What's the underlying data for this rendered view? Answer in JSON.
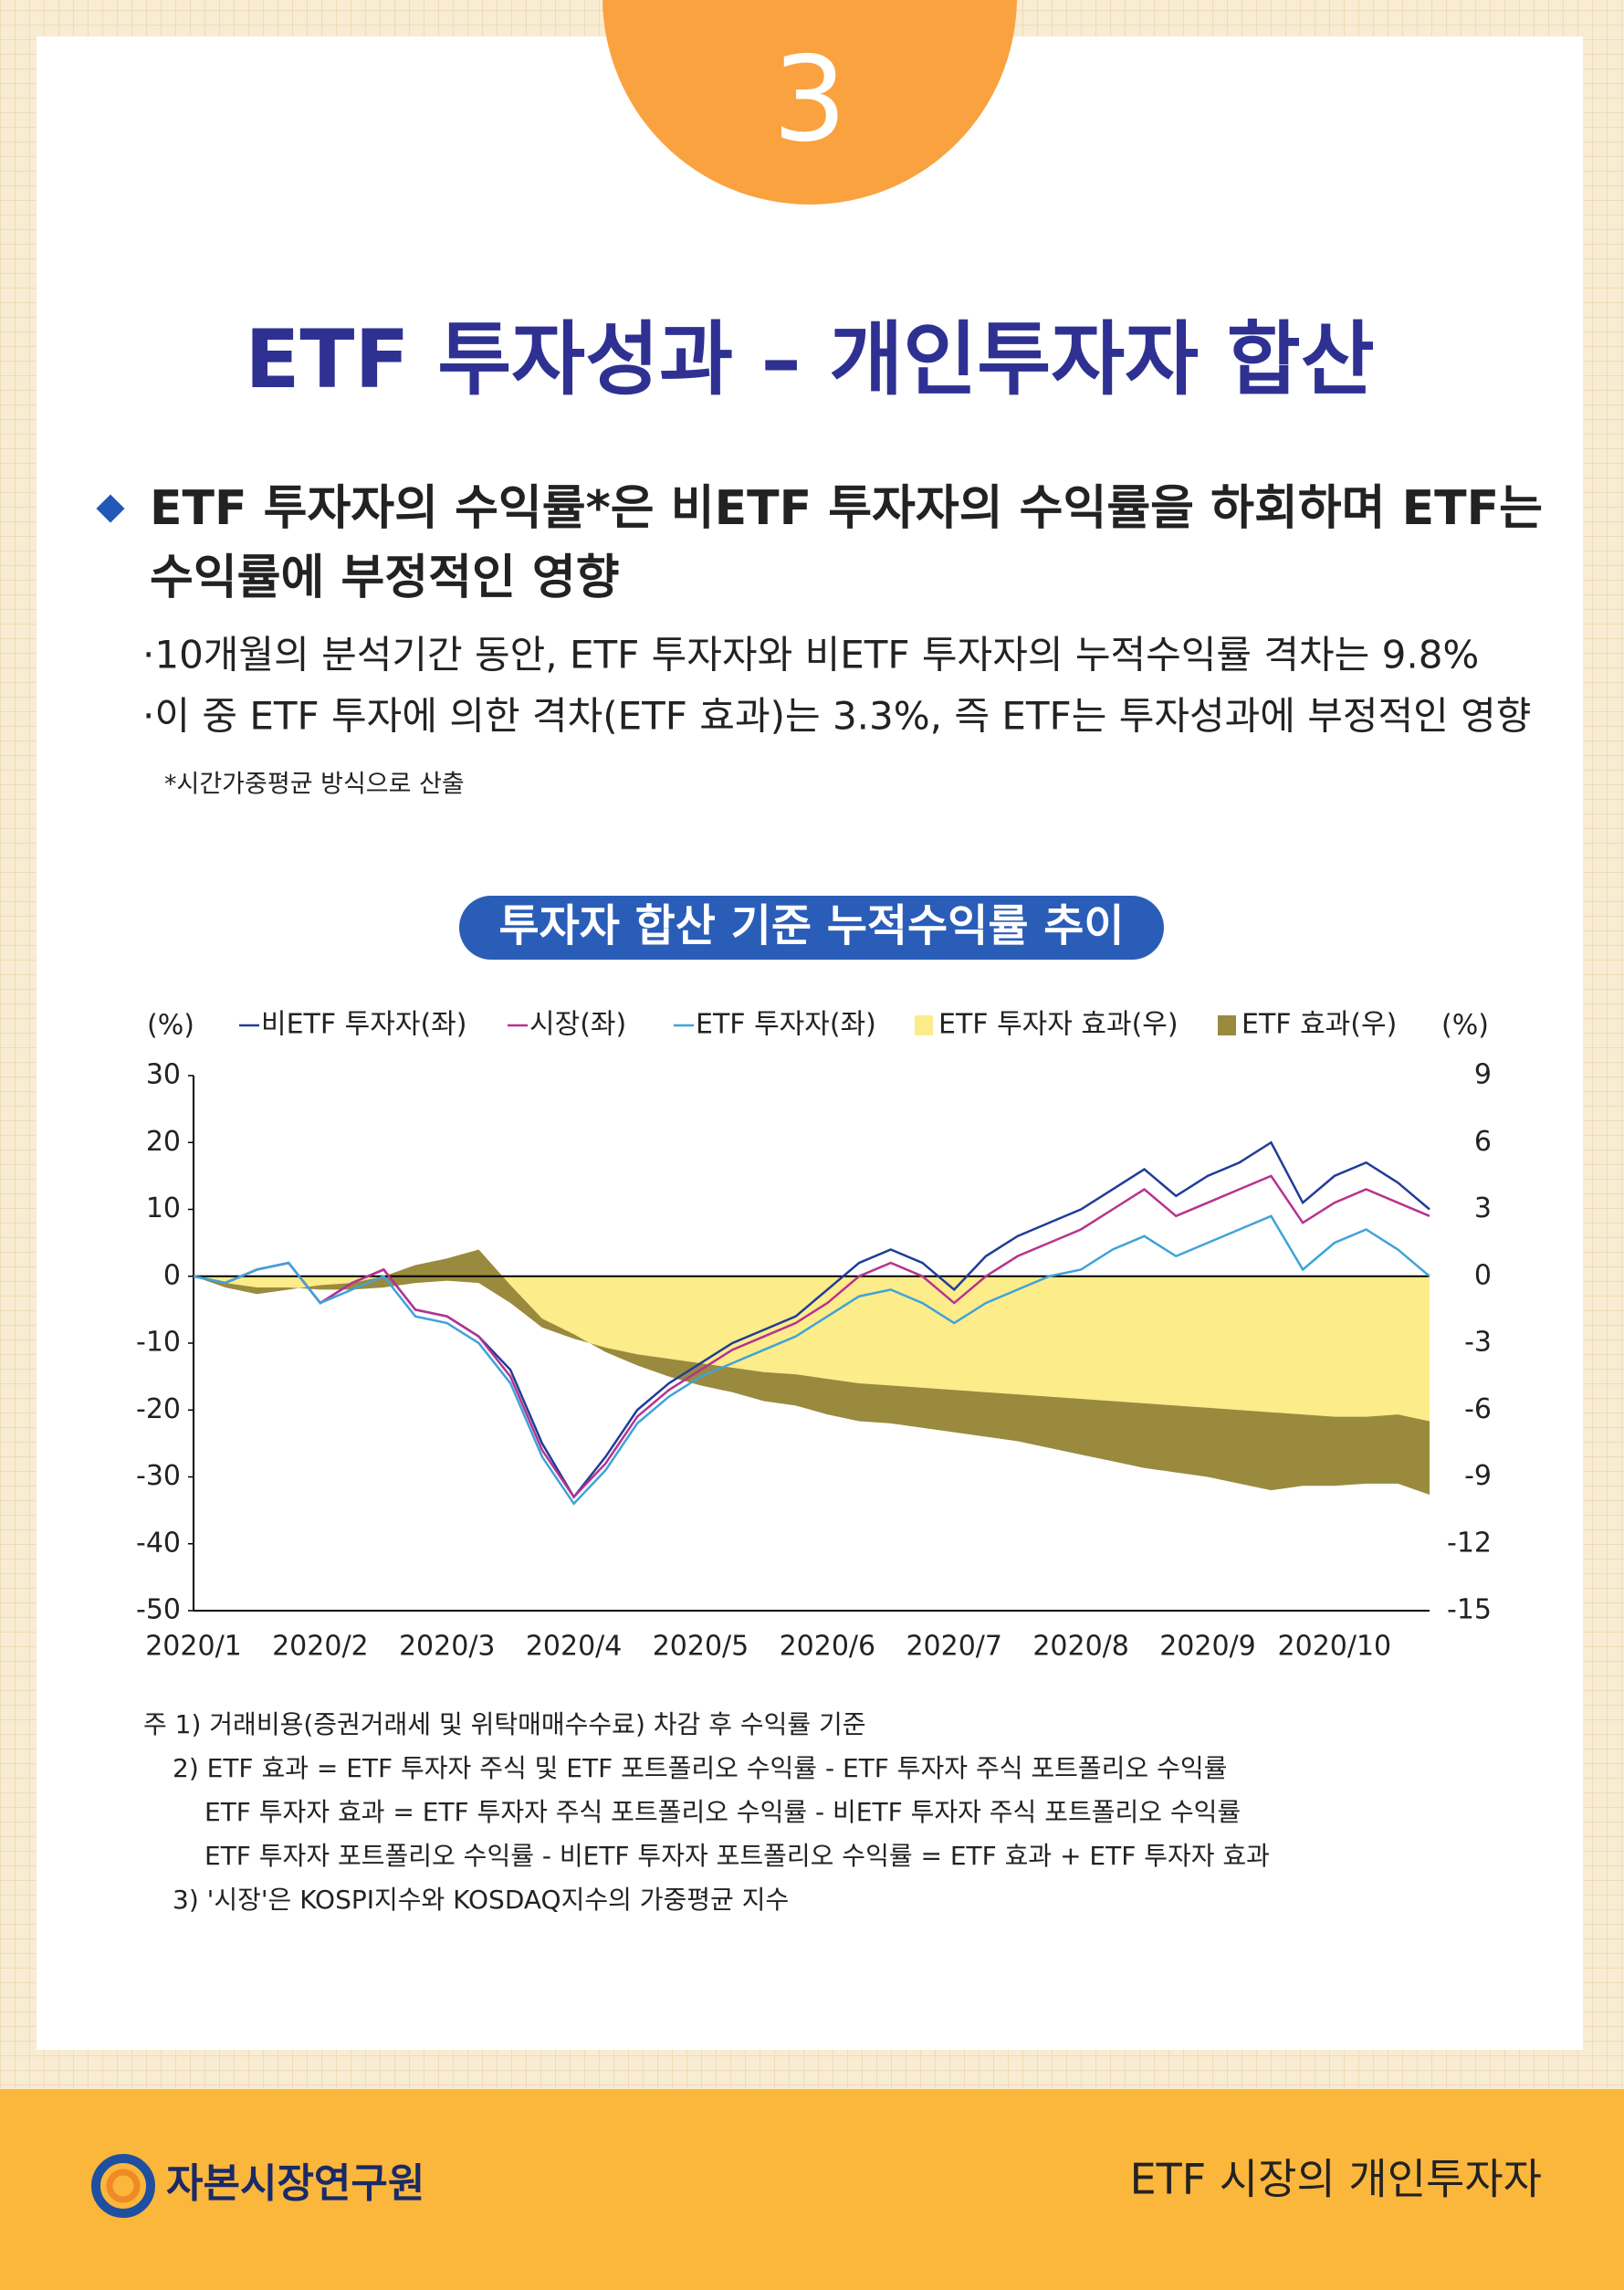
{
  "header": {
    "number": "3",
    "title": "ETF 투자성과 – 개인투자자 합산"
  },
  "summary": {
    "heading": [
      "ETF 투자자의 수익률*은 비ETF 투자자의 수익률을 하회하며 ETF는",
      "수익률에 부정적인 영향"
    ],
    "points": [
      "·10개월의 분석기간 동안, ETF 투자자와 비ETF 투자자의 누적수익률 격차는 9.8%",
      "·이 중 ETF 투자에 의한 격차(ETF 효과)는 3.3%, 즉 ETF는 투자성과에 부정적인 영향"
    ],
    "note": "*시간가중평균 방식으로 산출"
  },
  "chart_data": {
    "type": "line",
    "title": "투자자 합산 기준 누적수익률 추이",
    "ylabel": "(%)",
    "y2label": "(%)",
    "categories": [
      "2020/1",
      null,
      null,
      null,
      "2020/2",
      null,
      null,
      null,
      "2020/3",
      null,
      null,
      null,
      "2020/4",
      null,
      null,
      null,
      "2020/5",
      null,
      null,
      null,
      "2020/6",
      null,
      null,
      null,
      "2020/7",
      null,
      null,
      null,
      "2020/8",
      null,
      null,
      null,
      "2020/9",
      null,
      null,
      null,
      "2020/10",
      null,
      null,
      null
    ],
    "ylim": [
      -50,
      30
    ],
    "yticks": [
      -50,
      -40,
      -30,
      -20,
      -10,
      0,
      10,
      20,
      30
    ],
    "y2lim": [
      -15,
      9
    ],
    "y2ticks": [
      -15,
      -12,
      -9,
      -6,
      -3,
      0,
      3,
      6,
      9
    ],
    "series": [
      {
        "name": "비ETF 투자자(좌)",
        "kind": "line",
        "color": "#1f3d99",
        "values": [
          0,
          -1,
          1,
          2,
          -4,
          -1,
          1,
          -5,
          -6,
          -9,
          -14,
          -25,
          -33,
          -27,
          -20,
          -16,
          -13,
          -10,
          -8,
          -6,
          -2,
          2,
          4,
          2,
          -2,
          3,
          6,
          8,
          10,
          13,
          16,
          12,
          15,
          17,
          20,
          11,
          15,
          17,
          14,
          10
        ]
      },
      {
        "name": "시장(좌)",
        "kind": "line",
        "color": "#b8328f",
        "values": [
          0,
          -1,
          1,
          2,
          -4,
          -1,
          1,
          -5,
          -6,
          -9,
          -15,
          -26,
          -33,
          -28,
          -21,
          -17,
          -14,
          -11,
          -9,
          -7,
          -4,
          0,
          2,
          0,
          -4,
          0,
          3,
          5,
          7,
          10,
          13,
          9,
          11,
          13,
          15,
          8,
          11,
          13,
          11,
          9
        ]
      },
      {
        "name": "ETF 투자자(좌)",
        "kind": "line",
        "color": "#3fa3d9",
        "values": [
          0,
          -1,
          1,
          2,
          -4,
          -2,
          0,
          -6,
          -7,
          -10,
          -16,
          -27,
          -34,
          -29,
          -22,
          -18,
          -15,
          -13,
          -11,
          -9,
          -6,
          -3,
          -2,
          -4,
          -7,
          -4,
          -2,
          0,
          1,
          4,
          6,
          3,
          5,
          7,
          9,
          1,
          5,
          7,
          4,
          0
        ]
      },
      {
        "name": "ETF 투자자 효과(우)",
        "kind": "area",
        "axis": "y2",
        "color": "#fcec8a",
        "values": [
          0,
          -0.3,
          -0.5,
          -0.5,
          -0.6,
          -0.6,
          -0.5,
          -0.3,
          -0.2,
          -0.3,
          -1.2,
          -2.3,
          -2.8,
          -3.2,
          -3.5,
          -3.7,
          -3.9,
          -4.1,
          -4.3,
          -4.4,
          -4.6,
          -4.8,
          -4.9,
          -5.0,
          -5.1,
          -5.2,
          -5.3,
          -5.4,
          -5.5,
          -5.6,
          -5.7,
          -5.8,
          -5.9,
          -6.0,
          -6.1,
          -6.2,
          -6.3,
          -6.3,
          -6.2,
          -6.5
        ]
      },
      {
        "name": "ETF 효과(우)",
        "kind": "area",
        "axis": "y2",
        "color": "#9a8a3e",
        "values": [
          0,
          -0.2,
          -0.3,
          -0.1,
          0.2,
          0.3,
          0.5,
          0.8,
          1.0,
          1.5,
          0.8,
          0.4,
          0.2,
          -0.2,
          -0.5,
          -0.8,
          -1.0,
          -1.1,
          -1.3,
          -1.4,
          -1.6,
          -1.7,
          -1.7,
          -1.8,
          -1.9,
          -2.0,
          -2.1,
          -2.3,
          -2.5,
          -2.7,
          -2.9,
          -3.0,
          -3.1,
          -3.3,
          -3.5,
          -3.2,
          -3.1,
          -3.0,
          -3.1,
          -3.3
        ]
      }
    ]
  },
  "footnotes": [
    "주 1) 거래비용(증권거래세 및 위탁매매수수료) 차감 후 수익률 기준",
    "2) ETF 효과 = ETF 투자자 주식 및 ETF 포트폴리오 수익률 - ETF 투자자 주식 포트폴리오 수익률",
    "ETF 투자자 효과 = ETF 투자자 주식 포트폴리오 수익률 - 비ETF 투자자 주식 포트폴리오 수익률",
    "ETF 투자자 포트폴리오 수익률 - 비ETF 투자자 포트폴리오 수익률 = ETF 효과 + ETF 투자자 효과",
    "3) '시장'은 KOSPI지수와 KOSDAQ지수의 가중평균 지수"
  ],
  "footer": {
    "org": "자본시장연구원",
    "series": "ETF 시장의 개인투자자"
  }
}
